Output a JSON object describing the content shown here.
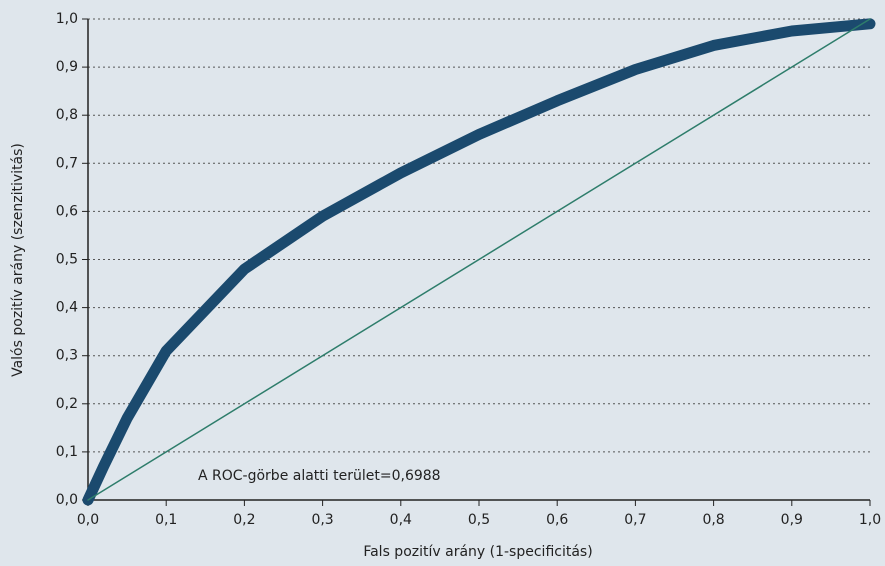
{
  "chart_data": {
    "type": "line",
    "x_label": "Fals pozitív arány (1-specificitás)",
    "y_label": "Valós pozitív arány (szenzitivitás)",
    "annotation": "A ROC-görbe alatti terület=0,6988",
    "series": [
      {
        "color": "#1b4a6e",
        "x": [
          0,
          0.02,
          0.05,
          0.1,
          0.2,
          0.3,
          0.4,
          0.5,
          0.6,
          0.7,
          0.8,
          0.9,
          1.0
        ],
        "values": [
          0,
          0.07,
          0.17,
          0.31,
          0.48,
          0.59,
          0.68,
          0.76,
          0.83,
          0.895,
          0.945,
          0.975,
          0.99
        ]
      },
      {
        "color": "#2e7d6b",
        "x": [
          0,
          1.0
        ],
        "values": [
          0,
          1.0
        ]
      }
    ],
    "xlim": [
      0,
      1.0
    ],
    "ylim": [
      0,
      1.0
    ],
    "xticks": [
      {
        "value": 0,
        "label": "0,0"
      },
      {
        "value": 0.1,
        "label": "0,1"
      },
      {
        "value": 0.2,
        "label": "0,2"
      },
      {
        "value": 0.3,
        "label": "0,3"
      },
      {
        "value": 0.4,
        "label": "0,4"
      },
      {
        "value": 0.5,
        "label": "0,5"
      },
      {
        "value": 0.6,
        "label": "0,6"
      },
      {
        "value": 0.7,
        "label": "0,7"
      },
      {
        "value": 0.8,
        "label": "0,8"
      },
      {
        "value": 0.9,
        "label": "0,9"
      },
      {
        "value": 1.0,
        "label": "1,0"
      }
    ],
    "yticks": [
      {
        "value": 0,
        "label": "0,0"
      },
      {
        "value": 0.1,
        "label": "0,1"
      },
      {
        "value": 0.2,
        "label": "0,2"
      },
      {
        "value": 0.3,
        "label": "0,3"
      },
      {
        "value": 0.4,
        "label": "0,4"
      },
      {
        "value": 0.5,
        "label": "0,5"
      },
      {
        "value": 0.6,
        "label": "0,6"
      },
      {
        "value": 0.7,
        "label": "0,7"
      },
      {
        "value": 0.8,
        "label": "0,8"
      },
      {
        "value": 0.9,
        "label": "0,9"
      },
      {
        "value": 1.0,
        "label": "1,0"
      }
    ],
    "grid": true
  }
}
